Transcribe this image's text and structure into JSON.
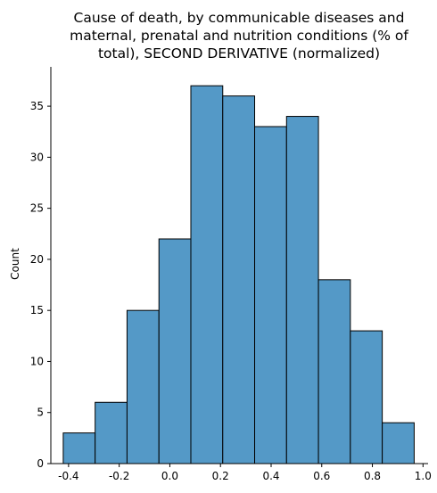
{
  "chart_data": {
    "type": "histogram",
    "title_lines": [
      "Cause of death, by communicable diseases and",
      "maternal, prenatal and nutrition conditions (% of",
      "total), SECOND DERIVATIVE (normalized)"
    ],
    "xlabel": "",
    "ylabel": "Count",
    "xlim": [
      -0.47,
      1.02
    ],
    "ylim": [
      0,
      38.85
    ],
    "xticks": [
      "-0.4",
      "-0.2",
      "0.0",
      "0.2",
      "0.4",
      "0.6",
      "0.8",
      "1.0"
    ],
    "xtick_values": [
      -0.4,
      -0.2,
      0.0,
      0.2,
      0.4,
      0.6,
      0.8,
      1.0
    ],
    "yticks": [
      "0",
      "5",
      "10",
      "15",
      "20",
      "25",
      "30",
      "35"
    ],
    "ytick_values": [
      0,
      5,
      10,
      15,
      20,
      25,
      30,
      35
    ],
    "bin_edges": [
      -0.421,
      -0.295,
      -0.169,
      -0.043,
      0.083,
      0.209,
      0.335,
      0.461,
      0.587,
      0.713,
      0.839,
      0.965
    ],
    "counts": [
      3,
      6,
      15,
      22,
      37,
      36,
      33,
      34,
      18,
      13,
      4
    ],
    "bar_color": "#5499c7",
    "edge_color": "#000000",
    "grid": false
  }
}
